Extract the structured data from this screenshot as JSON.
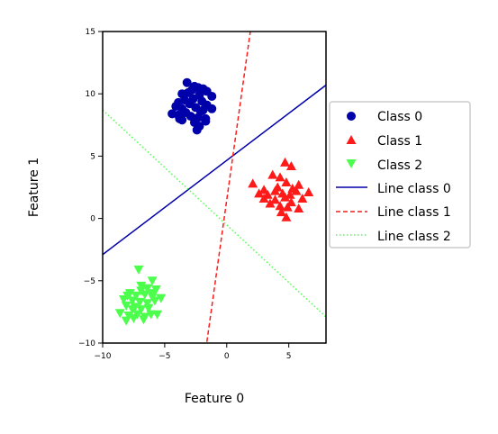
{
  "chart_data": {
    "type": "scatter",
    "title": "",
    "xlabel": "Feature 0",
    "ylabel": "Feature 1",
    "xlim": [
      -10,
      8
    ],
    "ylim": [
      -10,
      15
    ],
    "xticks": [
      -10,
      -5,
      0,
      5
    ],
    "yticks": [
      -10,
      -5,
      0,
      5,
      10,
      15
    ],
    "xtick_labels": [
      "−10",
      "−5",
      "0",
      "5"
    ],
    "ytick_labels": [
      "−10",
      "−5",
      "0",
      "5",
      "10",
      "15"
    ],
    "grid": false,
    "legend_position": "right, outside plot",
    "series": [
      {
        "name": "Class 0",
        "marker": "circle",
        "color": "#0000aa",
        "points": [
          [
            -3.2,
            10.9
          ],
          [
            -2.6,
            10.6
          ],
          [
            -2.3,
            10.5
          ],
          [
            -1.9,
            10.4
          ],
          [
            -1.6,
            10.2
          ],
          [
            -3.6,
            10.0
          ],
          [
            -3.1,
            10.1
          ],
          [
            -2.8,
            10.3
          ],
          [
            -1.2,
            9.8
          ],
          [
            -2.2,
            9.9
          ],
          [
            -2.7,
            9.6
          ],
          [
            -3.9,
            9.3
          ],
          [
            -3.4,
            9.5
          ],
          [
            -2.0,
            9.4
          ],
          [
            -1.6,
            9.1
          ],
          [
            -3.0,
            9.2
          ],
          [
            -4.1,
            9.0
          ],
          [
            -3.6,
            8.8
          ],
          [
            -2.5,
            8.9
          ],
          [
            -1.9,
            8.7
          ],
          [
            -1.2,
            8.8
          ],
          [
            -4.4,
            8.4
          ],
          [
            -3.9,
            8.3
          ],
          [
            -3.3,
            8.5
          ],
          [
            -2.9,
            8.2
          ],
          [
            -2.3,
            8.1
          ],
          [
            -1.7,
            8.0
          ],
          [
            -3.6,
            7.9
          ],
          [
            -2.6,
            7.7
          ],
          [
            -1.7,
            7.8
          ],
          [
            -2.2,
            7.4
          ],
          [
            -2.4,
            7.1
          ],
          [
            -3.8,
            8.0
          ],
          [
            -2.1,
            8.6
          ]
        ]
      },
      {
        "name": "Class 1",
        "marker": "triangle-up",
        "color": "#ff1a1a",
        "points": [
          [
            4.7,
            4.5
          ],
          [
            5.2,
            4.2
          ],
          [
            3.7,
            3.5
          ],
          [
            4.3,
            3.3
          ],
          [
            2.1,
            2.8
          ],
          [
            4.8,
            2.9
          ],
          [
            5.8,
            2.7
          ],
          [
            3.0,
            2.3
          ],
          [
            4.1,
            2.5
          ],
          [
            5.3,
            2.4
          ],
          [
            6.6,
            2.1
          ],
          [
            2.6,
            2.0
          ],
          [
            3.3,
            1.9
          ],
          [
            4.5,
            2.0
          ],
          [
            5.6,
            2.2
          ],
          [
            3.0,
            1.6
          ],
          [
            3.9,
            1.5
          ],
          [
            4.7,
            1.7
          ],
          [
            6.1,
            1.6
          ],
          [
            3.5,
            1.2
          ],
          [
            4.3,
            1.0
          ],
          [
            5.2,
            1.3
          ],
          [
            4.4,
            0.5
          ],
          [
            4.9,
            0.9
          ],
          [
            5.8,
            0.8
          ],
          [
            4.8,
            0.1
          ],
          [
            3.9,
            2.2
          ],
          [
            5.1,
            1.9
          ]
        ]
      },
      {
        "name": "Class 2",
        "marker": "triangle-down",
        "color": "#4dff4d",
        "points": [
          [
            -7.1,
            -4.1
          ],
          [
            -6.0,
            -5.0
          ],
          [
            -6.9,
            -5.4
          ],
          [
            -6.4,
            -5.6
          ],
          [
            -5.7,
            -5.7
          ],
          [
            -7.8,
            -6.0
          ],
          [
            -7.3,
            -6.2
          ],
          [
            -6.6,
            -6.1
          ],
          [
            -6.0,
            -6.3
          ],
          [
            -5.3,
            -6.4
          ],
          [
            -8.3,
            -6.5
          ],
          [
            -7.6,
            -6.6
          ],
          [
            -7.0,
            -6.7
          ],
          [
            -6.4,
            -6.8
          ],
          [
            -5.8,
            -6.6
          ],
          [
            -8.1,
            -7.0
          ],
          [
            -7.4,
            -7.1
          ],
          [
            -6.9,
            -7.3
          ],
          [
            -6.3,
            -7.2
          ],
          [
            -8.6,
            -7.6
          ],
          [
            -7.9,
            -7.8
          ],
          [
            -7.2,
            -7.7
          ],
          [
            -6.6,
            -7.9
          ],
          [
            -6.1,
            -7.7
          ],
          [
            -5.6,
            -7.7
          ],
          [
            -8.1,
            -8.2
          ],
          [
            -7.5,
            -8.0
          ],
          [
            -6.7,
            -8.1
          ],
          [
            -6.9,
            -5.8
          ],
          [
            -6.0,
            -6.0
          ],
          [
            -7.6,
            -7.3
          ],
          [
            -8.0,
            -6.2
          ]
        ]
      }
    ],
    "lines": [
      {
        "name": "Line class 0",
        "style": "solid",
        "color": "#0000aa",
        "points": [
          [
            -10,
            -2.9
          ],
          [
            8,
            10.7
          ]
        ]
      },
      {
        "name": "Line class 1",
        "style": "dashed",
        "color": "#ff1a1a",
        "points": [
          [
            -1.6,
            -9.9
          ],
          [
            1.9,
            15.0
          ]
        ]
      },
      {
        "name": "Line class 2",
        "style": "dotted",
        "color": "#4dff4d",
        "points": [
          [
            -10,
            8.7
          ],
          [
            8,
            -7.9
          ]
        ]
      }
    ]
  }
}
